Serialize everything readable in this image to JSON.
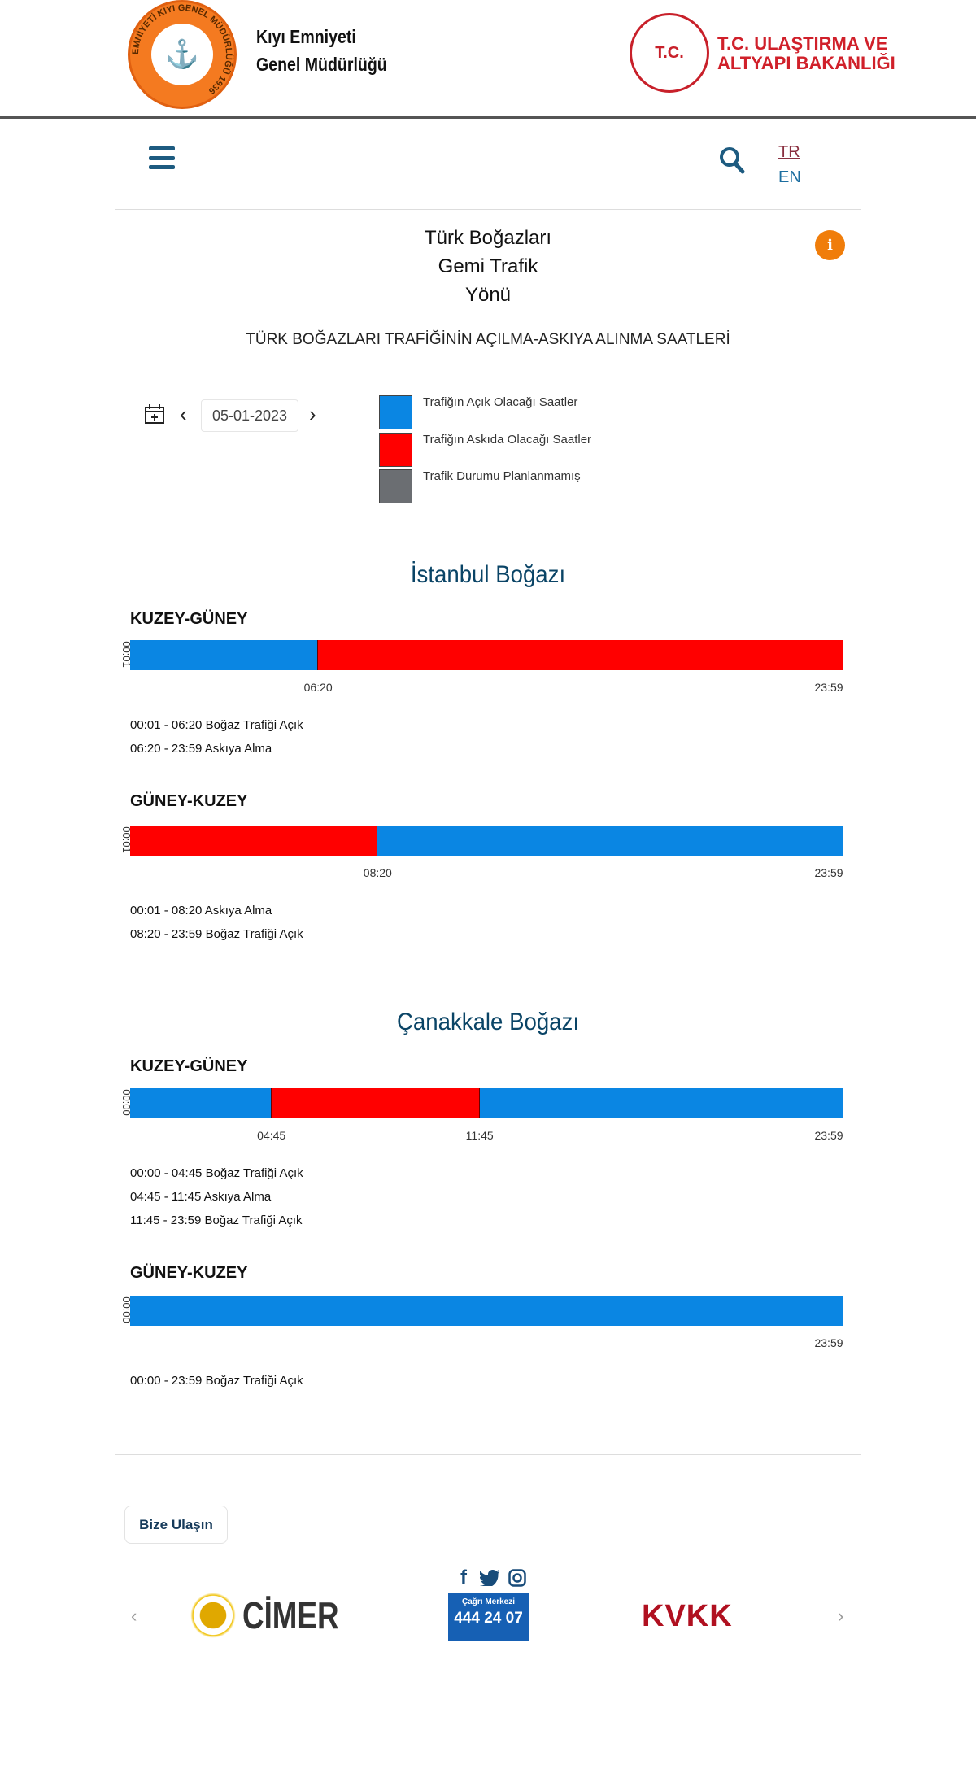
{
  "header": {
    "org_name_line1": "Kıyı Emniyeti",
    "org_name_line2": "Genel Müdürlüğü",
    "org_logo_text": "EMNİYETİ KIYI GENEL MÜDÜRLÜĞÜ 1936",
    "ministry_line1": "T.C. ULAŞTIRMA VE",
    "ministry_line2": "ALTYAPI BAKANLIĞI",
    "ministry_seal_text": "T.C."
  },
  "nav": {
    "lang_tr": "TR",
    "lang_en": "EN",
    "active_lang": "TR"
  },
  "page": {
    "title_line1": "Türk Boğazları",
    "title_line2": "Gemi Trafik",
    "title_line3": "Yönü",
    "info_icon": "i",
    "subtitle": "TÜRK BOĞAZLARI TRAFİĞİNİN AÇILMA-ASKIYA ALINMA SAATLERİ",
    "date": "05-01-2023",
    "prev": "‹",
    "next": "›"
  },
  "legend": [
    {
      "label": "Trafiğın Açık Olacağı Saatler",
      "color": "#0a86e3"
    },
    {
      "label": "Trafiğın Askıda Olacağı Saatler",
      "color": "#ff0000"
    },
    {
      "label": "Trafik Durumu Planlanmamış",
      "color": "#6b6e72"
    }
  ],
  "colors": {
    "open": "#0a86e3",
    "suspended": "#ff0000",
    "unplanned": "#6b6e72"
  },
  "straits": [
    {
      "name": "İstanbul Boğazı",
      "directions": [
        {
          "label": "KUZEY-GÜNEY",
          "start": "00:01",
          "segments": [
            {
              "from": "00:01",
              "to": "06:20",
              "state": "open"
            },
            {
              "from": "06:20",
              "to": "23:59",
              "state": "suspended"
            }
          ],
          "lines": [
            "00:01 - 06:20 Boğaz Trafiği Açık",
            "06:20 - 23:59 Askıya Alma"
          ]
        },
        {
          "label": "GÜNEY-KUZEY",
          "start": "00:01",
          "segments": [
            {
              "from": "00:01",
              "to": "08:20",
              "state": "suspended"
            },
            {
              "from": "08:20",
              "to": "23:59",
              "state": "open"
            }
          ],
          "lines": [
            "00:01 - 08:20 Askıya Alma",
            "08:20 - 23:59 Boğaz Trafiği Açık"
          ]
        }
      ]
    },
    {
      "name": "Çanakkale Boğazı",
      "directions": [
        {
          "label": "KUZEY-GÜNEY",
          "start": "00:00",
          "segments": [
            {
              "from": "00:00",
              "to": "04:45",
              "state": "open"
            },
            {
              "from": "04:45",
              "to": "11:45",
              "state": "suspended"
            },
            {
              "from": "11:45",
              "to": "23:59",
              "state": "open"
            }
          ],
          "lines": [
            "00:00 - 04:45 Boğaz Trafiği Açık",
            "04:45 - 11:45 Askıya Alma",
            "11:45 - 23:59 Boğaz Trafiği Açık"
          ]
        },
        {
          "label": "GÜNEY-KUZEY",
          "start": "00:00",
          "segments": [
            {
              "from": "00:00",
              "to": "23:59",
              "state": "open"
            }
          ],
          "lines": [
            "00:00 - 23:59 Boğaz Trafiği Açık"
          ]
        }
      ]
    }
  ],
  "footer": {
    "contact": "Bize Ulaşın",
    "call_small": "Çağrı Merkezi",
    "call_number": "444 24 07",
    "cimer": "CİMER",
    "kvkk": "KVKK",
    "social": [
      "facebook-icon",
      "twitter-icon",
      "instagram-icon"
    ]
  }
}
